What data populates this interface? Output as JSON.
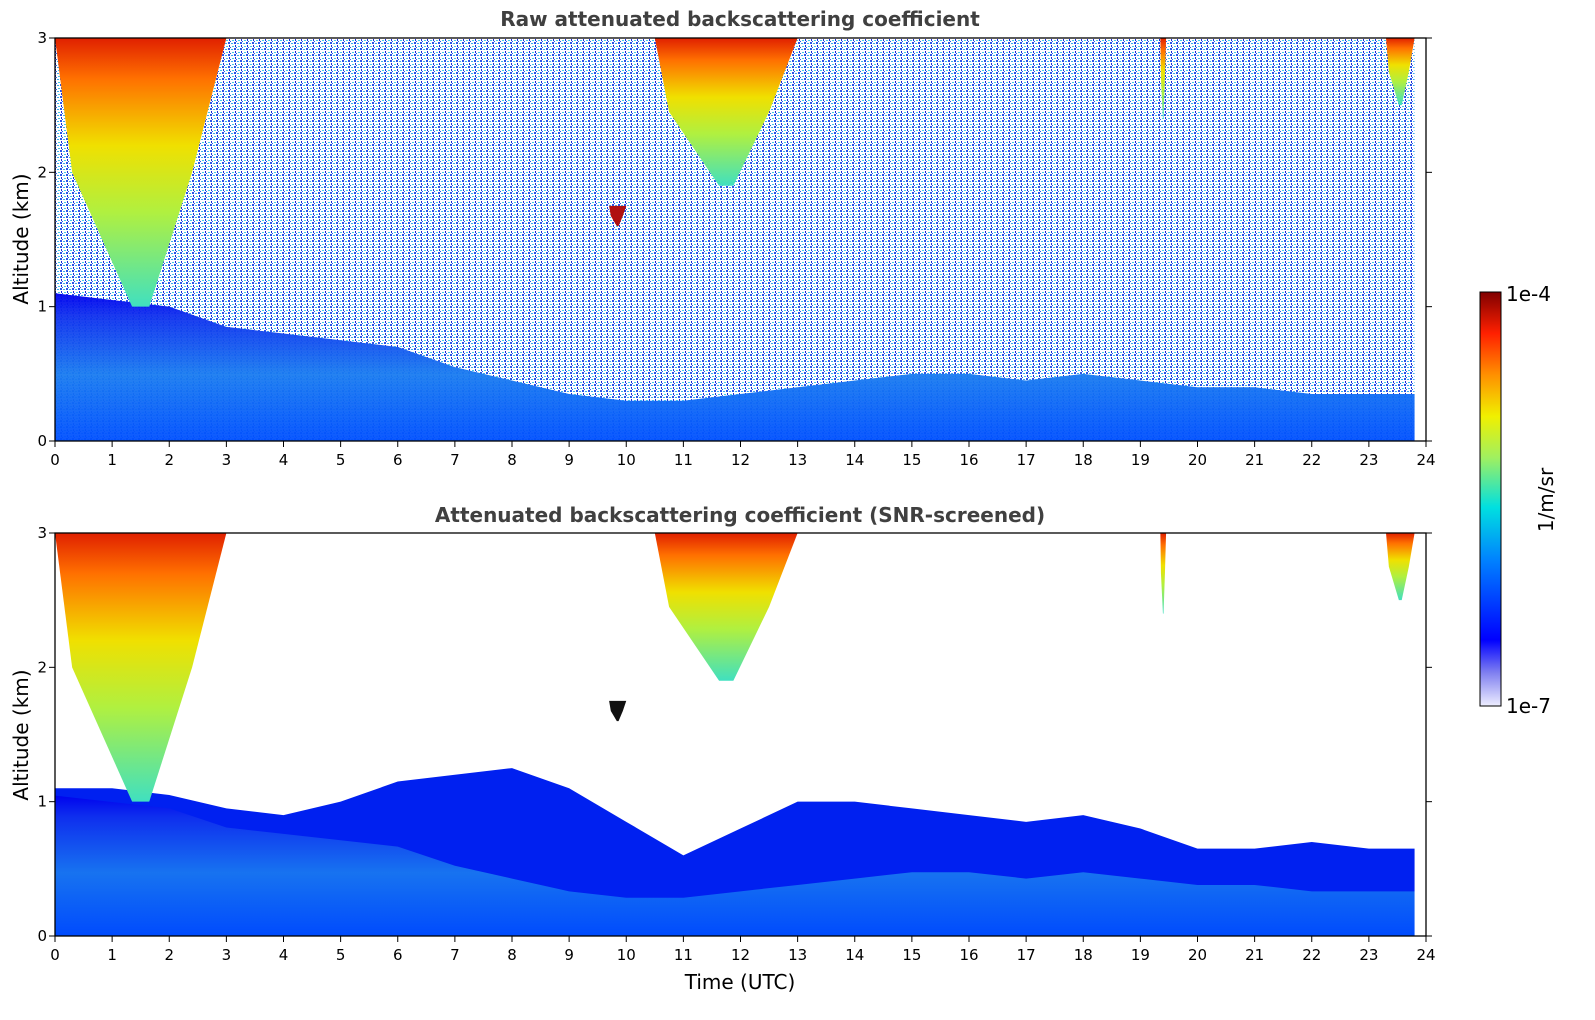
{
  "chart_data": [
    {
      "type": "heatmap",
      "title": "Raw attenuated backscattering coefficient",
      "xlabel": "",
      "ylabel": "Altitude (km)",
      "xlim": [
        0,
        24
      ],
      "ylim": [
        0,
        3
      ],
      "x_ticks": [
        "0",
        "1",
        "2",
        "3",
        "4",
        "5",
        "6",
        "7",
        "8",
        "9",
        "10",
        "11",
        "12",
        "13",
        "14",
        "15",
        "16",
        "17",
        "18",
        "19",
        "20",
        "21",
        "22",
        "23",
        "24"
      ],
      "y_ticks": [
        "0",
        "1",
        "2",
        "3"
      ],
      "layers": [
        {
          "name": "boundary layer aerosol",
          "top_km_by_hour": [
            1.1,
            1.05,
            1.0,
            0.85,
            0.8,
            0.75,
            0.7,
            0.55,
            0.45,
            0.35,
            0.3,
            0.3,
            0.35,
            0.4,
            0.45,
            0.5,
            0.5,
            0.45,
            0.5,
            0.45,
            0.4,
            0.4,
            0.35,
            0.35,
            0.35
          ],
          "level": "1e-6"
        },
        {
          "name": "cloud 00-03 UTC",
          "x_range": [
            0,
            3
          ],
          "alt_range_km": [
            1.0,
            3.0
          ],
          "level": "1e-5"
        },
        {
          "name": "cloud 10.5-13 UTC",
          "x_range": [
            10.5,
            13
          ],
          "alt_range_km": [
            1.9,
            3.0
          ],
          "level": "3e-5"
        },
        {
          "name": "cloud ~10 UTC",
          "x_range": [
            9.7,
            10.0
          ],
          "alt_range_km": [
            1.6,
            1.75
          ],
          "level": "1e-4"
        },
        {
          "name": "cloud 19.4 UTC",
          "x_range": [
            19.35,
            19.45
          ],
          "alt_range_km": [
            2.4,
            3.0
          ],
          "level": "1e-5"
        },
        {
          "name": "cloud 23-24 UTC",
          "x_range": [
            23.3,
            23.8
          ],
          "alt_range_km": [
            2.5,
            3.0
          ],
          "level": "2e-5"
        }
      ]
    },
    {
      "type": "heatmap",
      "title": "Attenuated backscattering coefficient (SNR-screened)",
      "xlabel": "Time (UTC)",
      "ylabel": "Altitude (km)",
      "xlim": [
        0,
        24
      ],
      "ylim": [
        0,
        3
      ],
      "x_ticks": [
        "0",
        "1",
        "2",
        "3",
        "4",
        "5",
        "6",
        "7",
        "8",
        "9",
        "10",
        "11",
        "12",
        "13",
        "14",
        "15",
        "16",
        "17",
        "18",
        "19",
        "20",
        "21",
        "22",
        "23",
        "24"
      ],
      "y_ticks": [
        "0",
        "1",
        "2",
        "3"
      ],
      "screened_top_km_by_hour": [
        1.1,
        1.1,
        1.05,
        0.95,
        0.9,
        1.0,
        1.15,
        1.2,
        1.25,
        1.1,
        0.85,
        0.6,
        0.8,
        1.0,
        1.0,
        0.95,
        0.9,
        0.85,
        0.9,
        0.8,
        0.65,
        0.65,
        0.7,
        0.65,
        0.65
      ]
    }
  ],
  "colorbar": {
    "max_label": "1e-4",
    "min_label": "1e-7",
    "unit_label": "1/m/sr",
    "colors": [
      "#eeeeff",
      "#c8c8f8",
      "#9a9af0",
      "#6a6ae8",
      "#0000ff",
      "#0040ff",
      "#0080ff",
      "#00bfff",
      "#00e0e0",
      "#40f0a0",
      "#a0f060",
      "#e8f000",
      "#ffc000",
      "#ff7000",
      "#ff2000",
      "#c00000",
      "#800000"
    ]
  }
}
